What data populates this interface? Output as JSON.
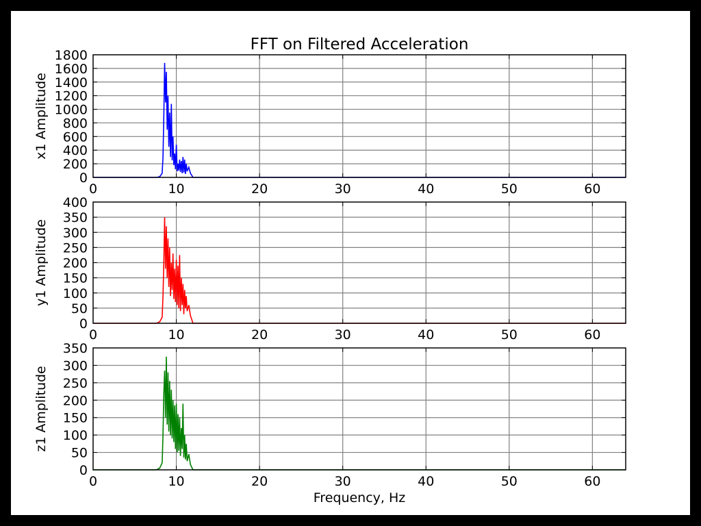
{
  "chart_data": {
    "type": "line",
    "title": "FFT on Filtered Acceleration",
    "xlabel": "Frequency, Hz",
    "xlim": [
      0,
      64
    ],
    "xticks": [
      0,
      10,
      20,
      30,
      40,
      50,
      60
    ],
    "grid": true,
    "panels": [
      {
        "ylabel": "x1 Amplitude",
        "color": "#0000ff",
        "ylim": [
          0,
          1800
        ],
        "yticks": [
          0,
          200,
          400,
          600,
          800,
          1000,
          1200,
          1400,
          1600,
          1800
        ],
        "series": [
          {
            "x": [
              0,
              7.6,
              8.0,
              8.3,
              8.4,
              8.5,
              8.6,
              8.7,
              8.8,
              8.9,
              9.0,
              9.1,
              9.2,
              9.3,
              9.4,
              9.5,
              9.6,
              9.7,
              9.8,
              9.9,
              10.0,
              10.1,
              10.2,
              10.3,
              10.4,
              10.5,
              10.6,
              10.7,
              10.8,
              10.9,
              11.0,
              11.1,
              11.2,
              11.3,
              11.5,
              11.7,
              12.0,
              64
            ],
            "y": [
              0,
              0,
              10,
              60,
              300,
              900,
              1680,
              1100,
              1550,
              700,
              1200,
              450,
              950,
              300,
              1080,
              250,
              600,
              180,
              350,
              120,
              480,
              90,
              200,
              100,
              260,
              80,
              240,
              60,
              300,
              70,
              260,
              50,
              200,
              90,
              150,
              60,
              0,
              0
            ]
          }
        ]
      },
      {
        "ylabel": "y1 Amplitude",
        "color": "#ff0000",
        "ylim": [
          0,
          400
        ],
        "yticks": [
          0,
          50,
          100,
          150,
          200,
          250,
          300,
          350,
          400
        ],
        "series": [
          {
            "x": [
              0,
              7.6,
              8.0,
              8.3,
              8.4,
              8.5,
              8.6,
              8.7,
              8.8,
              8.9,
              9.0,
              9.1,
              9.2,
              9.3,
              9.4,
              9.5,
              9.6,
              9.7,
              9.8,
              9.9,
              10.0,
              10.1,
              10.2,
              10.3,
              10.4,
              10.5,
              10.6,
              10.7,
              10.8,
              10.9,
              11.0,
              11.1,
              11.2,
              11.3,
              11.5,
              11.7,
              12.0,
              64
            ],
            "y": [
              0,
              0,
              5,
              20,
              90,
              200,
              350,
              180,
              320,
              150,
              280,
              120,
              250,
              90,
              200,
              110,
              230,
              80,
              180,
              70,
              210,
              60,
              190,
              50,
              225,
              40,
              150,
              60,
              130,
              30,
              110,
              50,
              90,
              40,
              60,
              25,
              0,
              0
            ]
          }
        ]
      },
      {
        "ylabel": "z1 Amplitude",
        "color": "#008000",
        "ylim": [
          0,
          350
        ],
        "yticks": [
          0,
          50,
          100,
          150,
          200,
          250,
          300,
          350
        ],
        "series": [
          {
            "x": [
              0,
              7.6,
              8.0,
              8.3,
              8.4,
              8.5,
              8.6,
              8.7,
              8.8,
              8.9,
              9.0,
              9.1,
              9.2,
              9.3,
              9.4,
              9.5,
              9.6,
              9.7,
              9.8,
              9.9,
              10.0,
              10.1,
              10.2,
              10.3,
              10.4,
              10.5,
              10.6,
              10.7,
              10.8,
              10.9,
              11.0,
              11.1,
              11.2,
              11.3,
              11.5,
              11.7,
              12.0,
              64
            ],
            "y": [
              0,
              0,
              5,
              20,
              100,
              220,
              285,
              150,
              325,
              130,
              280,
              110,
              255,
              100,
              230,
              90,
              200,
              80,
              185,
              60,
              190,
              50,
              160,
              55,
              150,
              40,
              120,
              60,
              190,
              35,
              100,
              30,
              75,
              25,
              45,
              15,
              0,
              0
            ]
          }
        ]
      }
    ]
  }
}
